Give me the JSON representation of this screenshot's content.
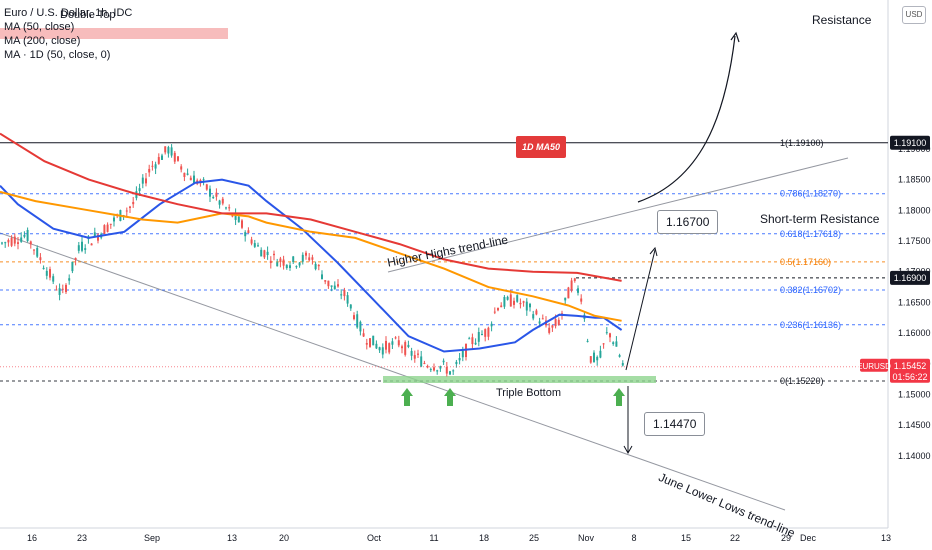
{
  "legend": {
    "symbol_line": "Euro / U.S. Dollar, 1h, IDC",
    "ma1": "MA (50, close)",
    "ma2": "MA (200, close)",
    "ma3": "MA · 1D (50, close, 0)"
  },
  "currency_button": "USD",
  "annotations": {
    "double_top": "Double Top",
    "resistance": "Resistance",
    "short_term_resistance": "Short-term Resistance",
    "higher_highs": "Higher Highs trend-line",
    "triple_bottom": "Triple Bottom",
    "june_lower_lows": "June Lower Lows trend-line",
    "ma_1d_label": "1D MA50",
    "target_up": "1.16700",
    "target_down": "1.14470"
  },
  "fib_levels": [
    {
      "label": "1(1.19100)",
      "value": 1.191,
      "color": "#131722",
      "style": "solid"
    },
    {
      "label": "0.786(1.18270)",
      "value": 1.1827,
      "color": "#2962ff",
      "style": "dashed"
    },
    {
      "label": "0.618(1.17618)",
      "value": 1.17618,
      "color": "#2962ff",
      "style": "dashed"
    },
    {
      "label": "0.5(1.17160)",
      "value": 1.1716,
      "color": "#f57c00",
      "style": "dashed"
    },
    {
      "label": "0.382(1.16702)",
      "value": 1.16702,
      "color": "#2962ff",
      "style": "dashed"
    },
    {
      "label": "0.236(1.16136)",
      "value": 1.16136,
      "color": "#2962ff",
      "style": "dashed"
    },
    {
      "label": "0(1.15220)",
      "value": 1.1522,
      "color": "#131722",
      "style": "dashed"
    }
  ],
  "price_pills": [
    {
      "text": "1.19100",
      "value": 1.191,
      "bg": "#131722",
      "fg": "#ffffff"
    },
    {
      "text": "1.16900",
      "value": 1.169,
      "bg": "#131722",
      "fg": "#ffffff"
    }
  ],
  "current_price": {
    "symbol": "EURUSD",
    "price": "1.15452",
    "countdown": "01:56:22",
    "value": 1.15452,
    "bg": "#f23645"
  },
  "colors": {
    "up": "#26a69a",
    "down": "#ef5350",
    "ma50": "#2a56e8",
    "ma200": "#ff9800",
    "ma1d": "#e53935",
    "triple_bottom_zone": "#8fd48f",
    "arrow": "#4caf50"
  },
  "chart_data": {
    "type": "candlestick",
    "title": "Euro / U.S. Dollar, 1h, IDC",
    "x_ticks": [
      "16",
      "23",
      "Sep",
      "13",
      "20",
      "Oct",
      "11",
      "18",
      "25",
      "Nov",
      "8",
      "15",
      "22",
      "29",
      "Dec",
      "13"
    ],
    "y_ticks": [
      1.14,
      1.145,
      1.15,
      1.155,
      1.16,
      1.165,
      1.17,
      1.175,
      1.18,
      1.185,
      1.19
    ],
    "ylim": [
      1.137,
      1.1955
    ],
    "series": [
      {
        "name": "MA (50, close)",
        "color": "#2a56e8",
        "points": [
          [
            0,
            1.184
          ],
          [
            0.02,
            1.181
          ],
          [
            0.06,
            1.177
          ],
          [
            0.1,
            1.1755
          ],
          [
            0.14,
            1.1765
          ],
          [
            0.18,
            1.181
          ],
          [
            0.22,
            1.1845
          ],
          [
            0.25,
            1.185
          ],
          [
            0.28,
            1.184
          ],
          [
            0.3,
            1.1815
          ],
          [
            0.34,
            1.177
          ],
          [
            0.38,
            1.1715
          ],
          [
            0.42,
            1.1655
          ],
          [
            0.46,
            1.1595
          ],
          [
            0.5,
            1.157
          ],
          [
            0.54,
            1.1575
          ],
          [
            0.58,
            1.1585
          ],
          [
            0.6,
            1.1605
          ],
          [
            0.63,
            1.163
          ],
          [
            0.65,
            1.1628
          ],
          [
            0.67,
            1.1625
          ],
          [
            0.68,
            1.1625
          ],
          [
            0.7,
            1.1605
          ]
        ]
      },
      {
        "name": "MA (200, close)",
        "color": "#ff9800",
        "points": [
          [
            0,
            1.183
          ],
          [
            0.04,
            1.1815
          ],
          [
            0.1,
            1.18
          ],
          [
            0.16,
            1.1785
          ],
          [
            0.2,
            1.178
          ],
          [
            0.25,
            1.1795
          ],
          [
            0.28,
            1.179
          ],
          [
            0.3,
            1.178
          ],
          [
            0.35,
            1.1765
          ],
          [
            0.4,
            1.1755
          ],
          [
            0.45,
            1.173
          ],
          [
            0.5,
            1.1705
          ],
          [
            0.55,
            1.1675
          ],
          [
            0.6,
            1.166
          ],
          [
            0.64,
            1.1645
          ],
          [
            0.67,
            1.1628
          ],
          [
            0.7,
            1.162
          ]
        ]
      },
      {
        "name": "MA · 1D (50, close, 0)",
        "color": "#e53935",
        "points": [
          [
            0,
            1.1925
          ],
          [
            0.05,
            1.188
          ],
          [
            0.1,
            1.185
          ],
          [
            0.15,
            1.1828
          ],
          [
            0.2,
            1.181
          ],
          [
            0.25,
            1.1795
          ],
          [
            0.3,
            1.1795
          ],
          [
            0.35,
            1.1785
          ],
          [
            0.4,
            1.1765
          ],
          [
            0.45,
            1.1745
          ],
          [
            0.5,
            1.172
          ],
          [
            0.55,
            1.1705
          ],
          [
            0.6,
            1.17
          ],
          [
            0.65,
            1.1698
          ],
          [
            0.7,
            1.1685
          ]
        ]
      }
    ]
  }
}
